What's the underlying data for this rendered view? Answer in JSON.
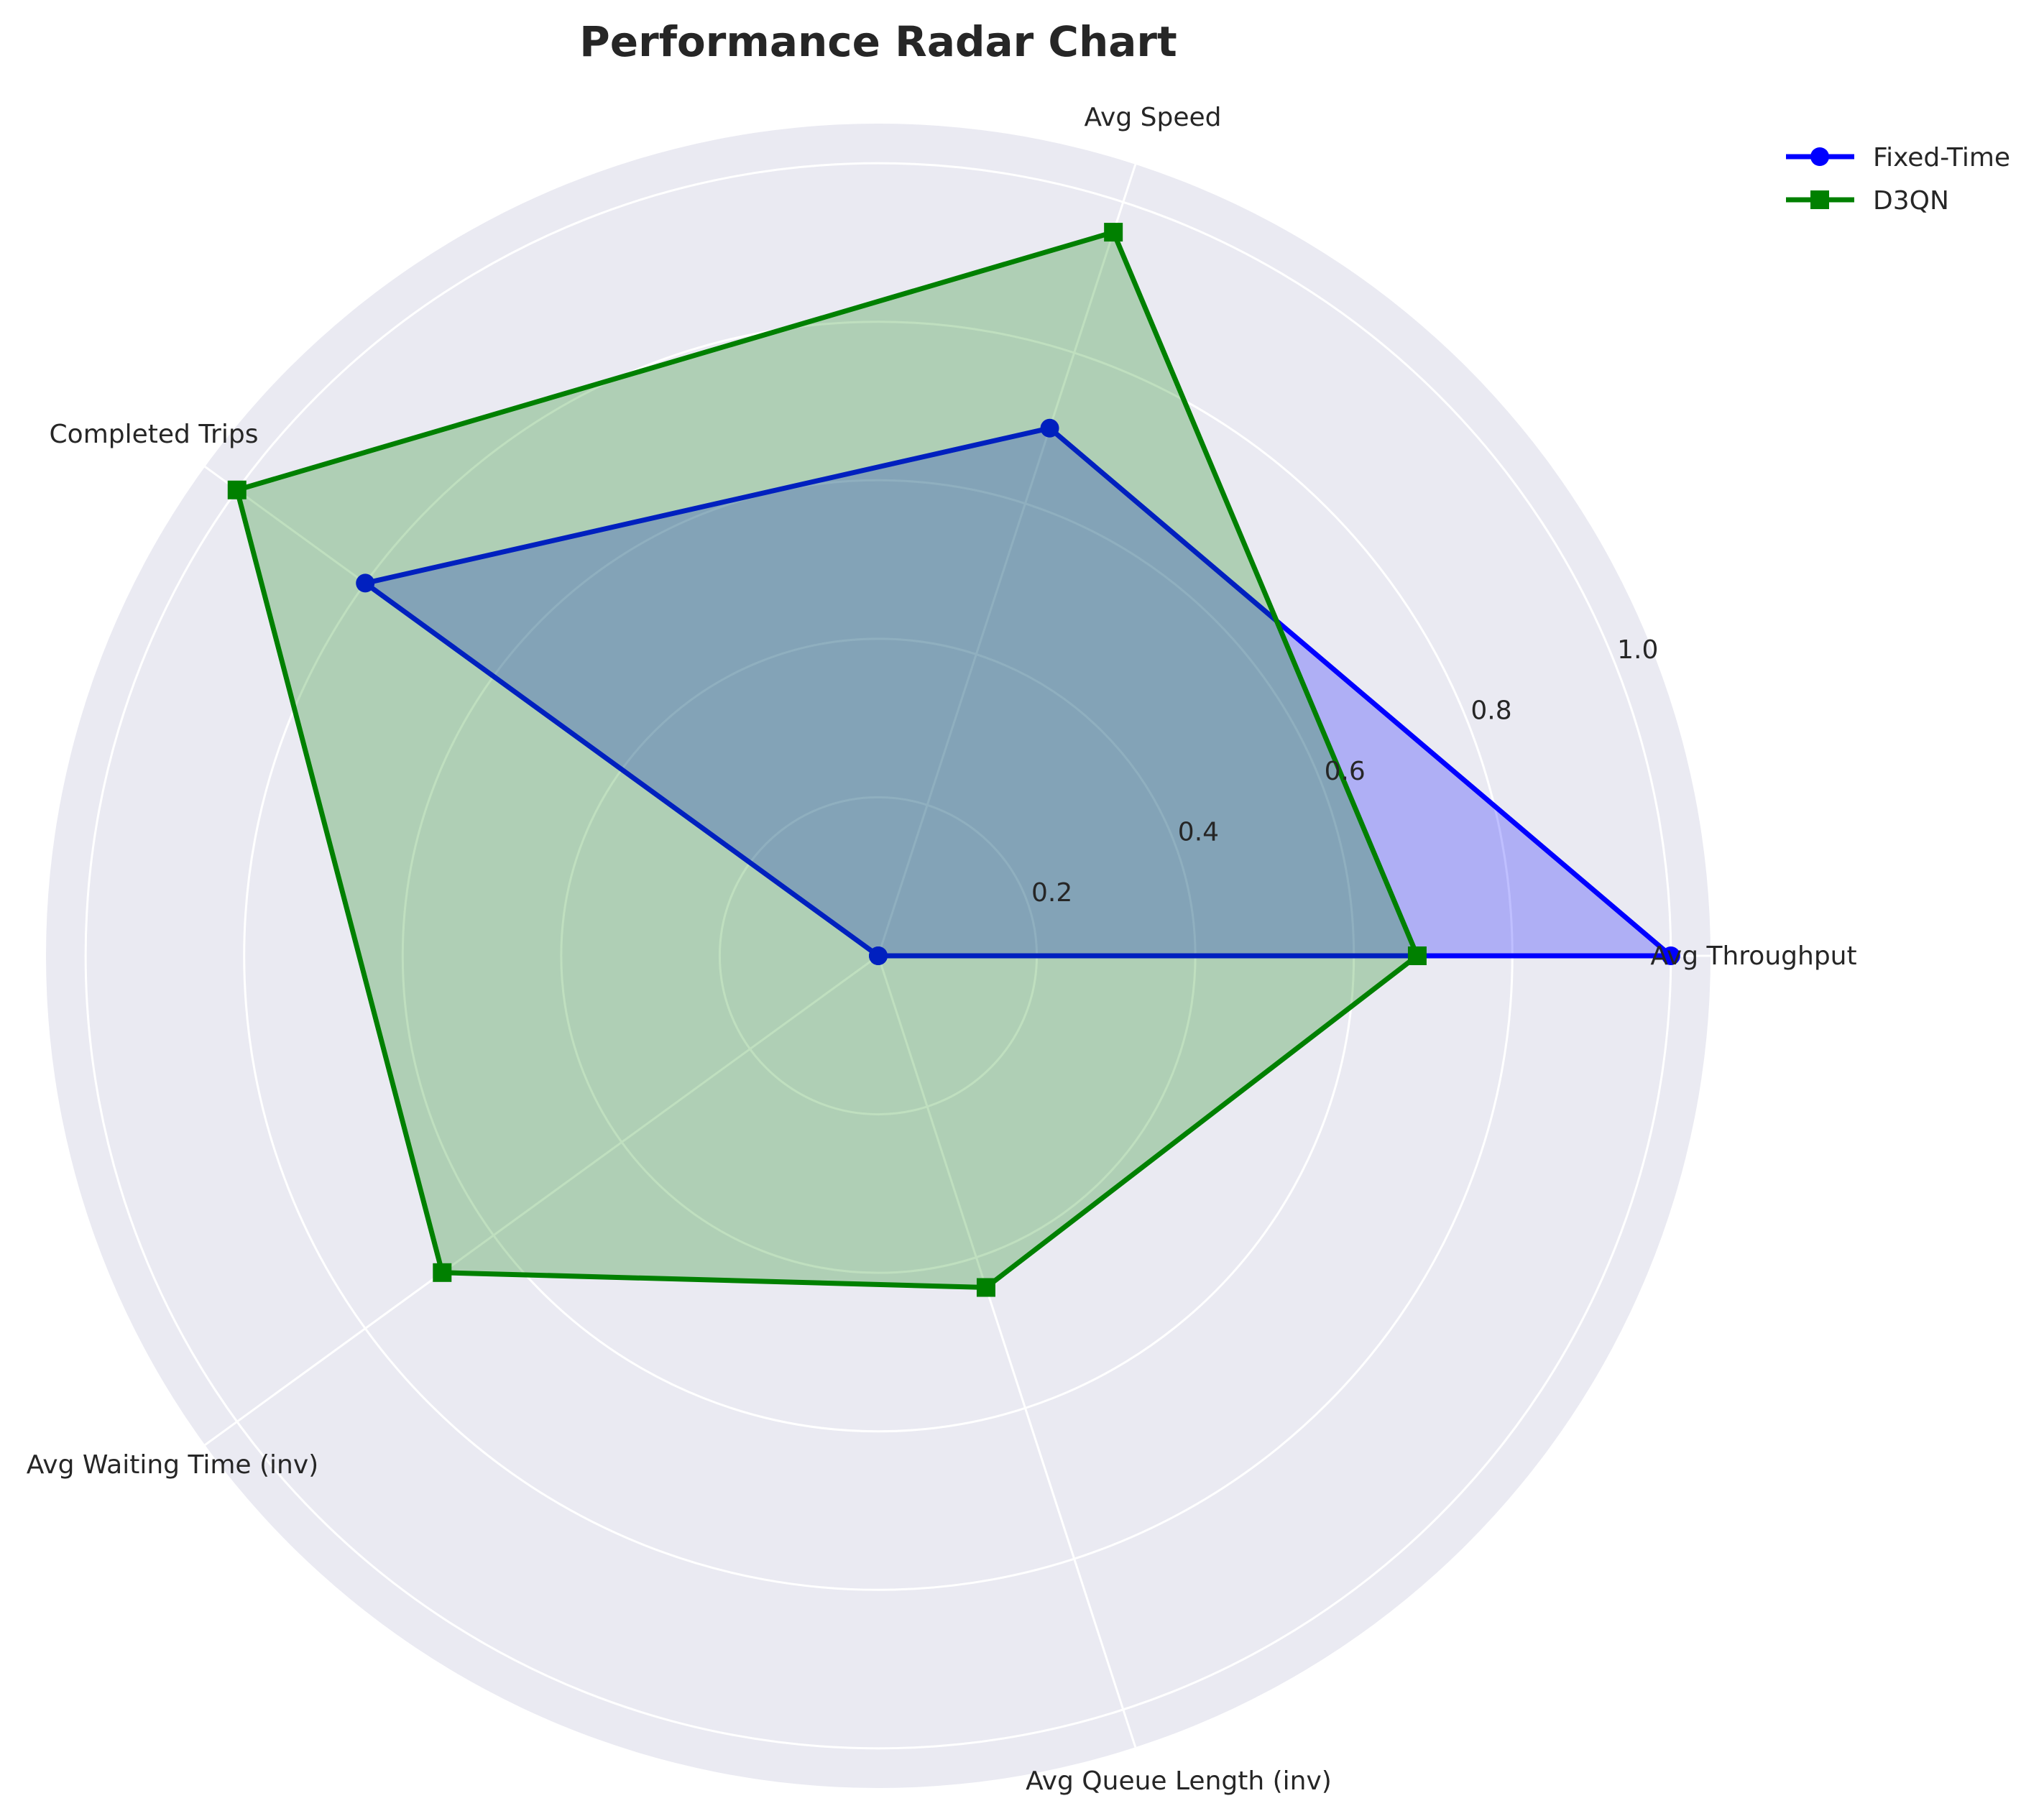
{
  "chart_data": {
    "type": "radar",
    "title": "Performance Radar Chart",
    "categories": [
      "Avg Throughput",
      "Avg Speed",
      "Completed Trips",
      "Avg Waiting Time (inv)",
      "Avg Queue Length (inv)"
    ],
    "radial_ticks": [
      "0.2",
      "0.4",
      "0.6",
      "0.8",
      "1.0"
    ],
    "radial_tick_values": [
      0.2,
      0.4,
      0.6,
      0.8,
      1.0
    ],
    "rlim": [
      0,
      1.05
    ],
    "grid": true,
    "legend_position": "top-right",
    "series": [
      {
        "name": "Fixed-Time",
        "color": "#0000ff",
        "fill": "#0000ff",
        "marker": "circle",
        "values": [
          1.0,
          0.7,
          0.8,
          0.0,
          0.0
        ]
      },
      {
        "name": "D3QN",
        "color": "#008000",
        "fill": "#008000",
        "marker": "square",
        "values": [
          0.68,
          0.96,
          1.0,
          0.68,
          0.44
        ]
      }
    ]
  }
}
